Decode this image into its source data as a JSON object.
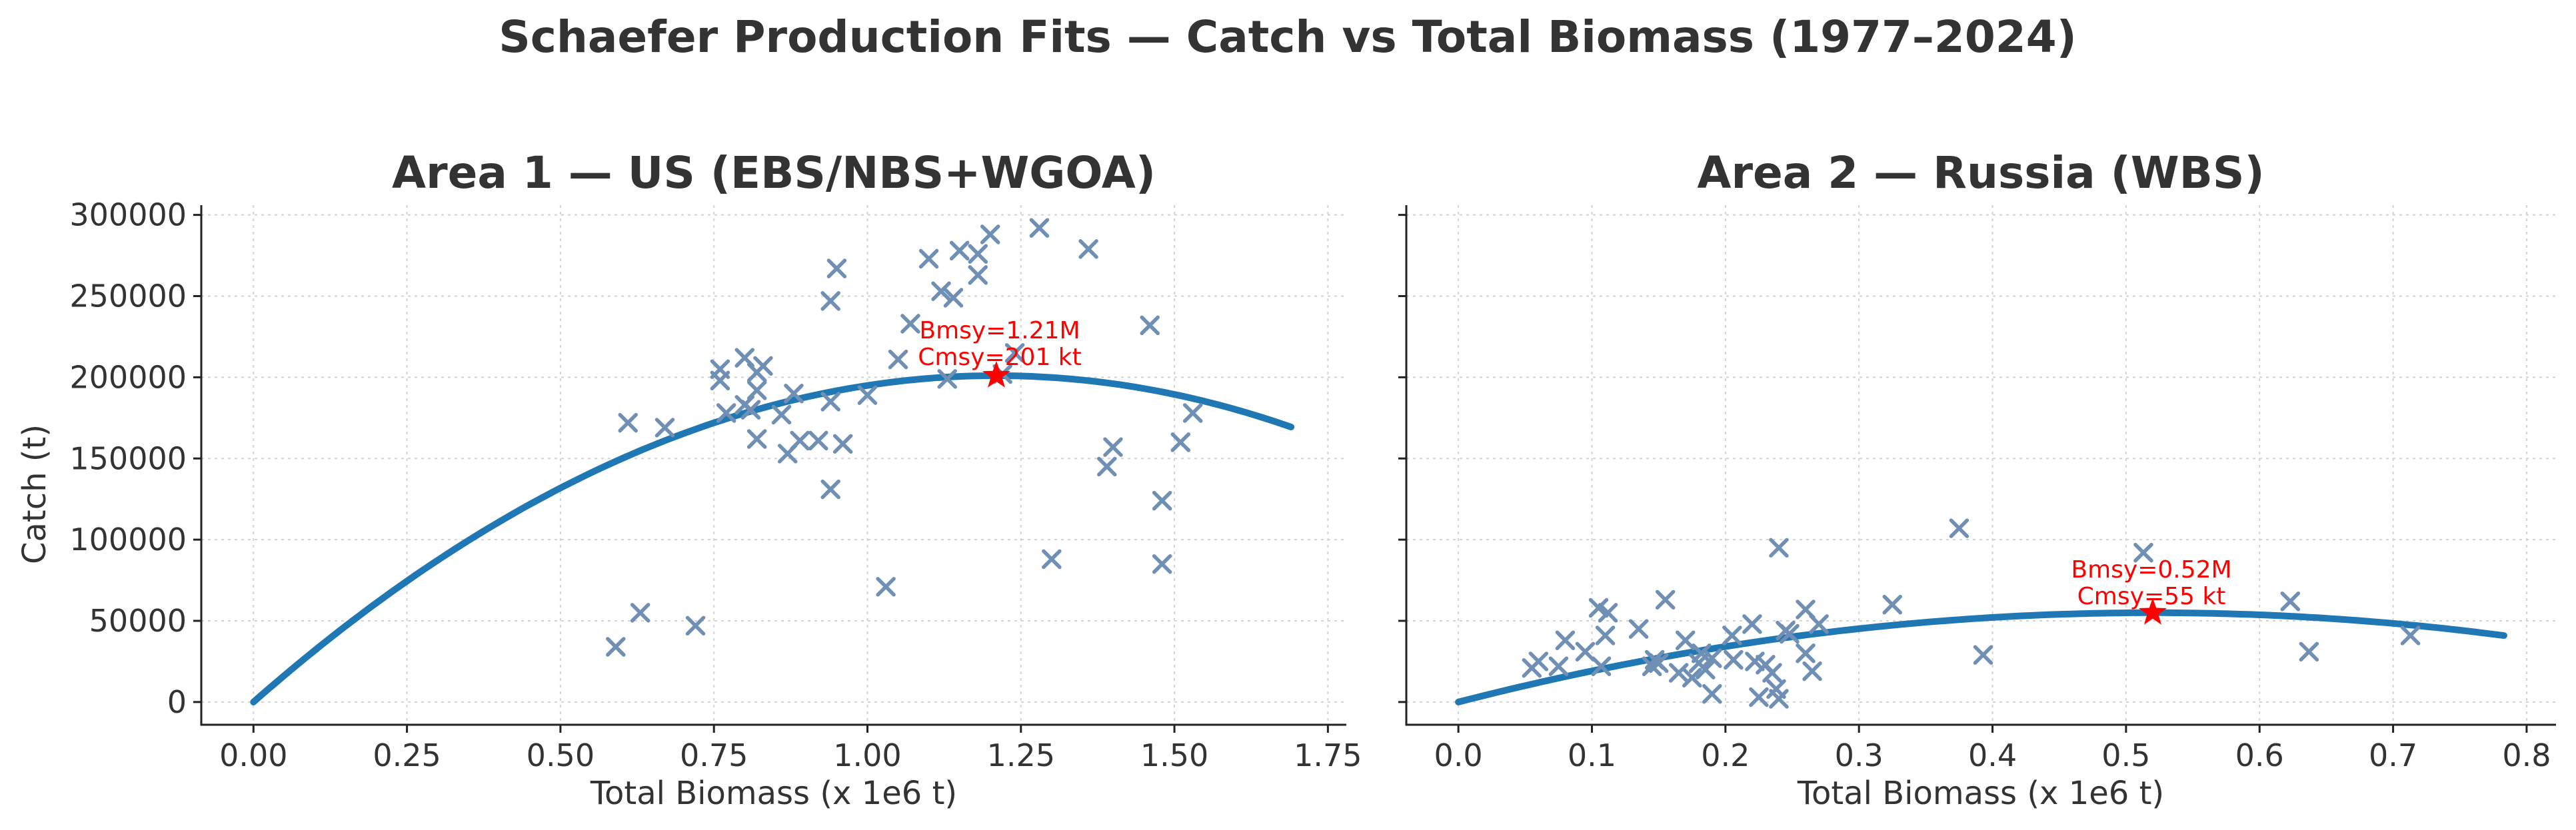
{
  "figure": {
    "suptitle": "Schaefer Production Fits — Catch vs Total Biomass (1977–2024)",
    "colors": {
      "fit": "#1f77b4",
      "observations": "#6f8fb4",
      "msy": "#ff0000",
      "text": "#333333"
    }
  },
  "chart_data": [
    {
      "type": "scatter",
      "title": "Area 1 — US (EBS/NBS+WGOA)",
      "xlabel": "Total Biomass (x 1e6 t)",
      "ylabel": "Catch (t)",
      "xlim": [
        -0.085,
        1.78
      ],
      "ylim": [
        -14000,
        306000
      ],
      "xticks": [
        0.0,
        0.25,
        0.5,
        0.75,
        1.0,
        1.25,
        1.5,
        1.75
      ],
      "xtick_labels": [
        "0.00",
        "0.25",
        "0.50",
        "0.75",
        "1.00",
        "1.25",
        "1.50",
        "1.75"
      ],
      "yticks": [
        0,
        50000,
        100000,
        150000,
        200000,
        250000,
        300000
      ],
      "ytick_labels": [
        "0",
        "50000",
        "100000",
        "150000",
        "200000",
        "250000",
        "300000"
      ],
      "grid": true,
      "observations": {
        "marker": "x",
        "points": [
          [
            0.59,
            34000
          ],
          [
            0.63,
            55000
          ],
          [
            0.61,
            172000
          ],
          [
            0.67,
            169000
          ],
          [
            0.72,
            47000
          ],
          [
            0.76,
            205000
          ],
          [
            0.76,
            198000
          ],
          [
            0.77,
            178000
          ],
          [
            0.8,
            212000
          ],
          [
            0.8,
            183000
          ],
          [
            0.82,
            203000
          ],
          [
            0.82,
            192000
          ],
          [
            0.83,
            207000
          ],
          [
            0.81,
            180000
          ],
          [
            0.82,
            162000
          ],
          [
            0.86,
            177000
          ],
          [
            0.87,
            153000
          ],
          [
            0.88,
            190000
          ],
          [
            0.89,
            161000
          ],
          [
            0.92,
            161000
          ],
          [
            0.94,
            185000
          ],
          [
            0.94,
            247000
          ],
          [
            0.95,
            267000
          ],
          [
            0.94,
            131000
          ],
          [
            0.96,
            159000
          ],
          [
            1.0,
            189000
          ],
          [
            1.03,
            71000
          ],
          [
            1.05,
            211000
          ],
          [
            1.07,
            233000
          ],
          [
            1.1,
            273000
          ],
          [
            1.12,
            253000
          ],
          [
            1.14,
            249000
          ],
          [
            1.15,
            278000
          ],
          [
            1.13,
            199000
          ],
          [
            1.18,
            276000
          ],
          [
            1.18,
            263000
          ],
          [
            1.2,
            288000
          ],
          [
            1.22,
            202000
          ],
          [
            1.24,
            215000
          ],
          [
            1.28,
            292000
          ],
          [
            1.3,
            88000
          ],
          [
            1.36,
            279000
          ],
          [
            1.39,
            145000
          ],
          [
            1.4,
            157000
          ],
          [
            1.46,
            232000
          ],
          [
            1.48,
            124000
          ],
          [
            1.48,
            85000
          ],
          [
            1.51,
            160000
          ],
          [
            1.53,
            178000
          ]
        ]
      },
      "fit": {
        "model": "Schaefer",
        "bmsy": 1.21,
        "cmsy": 201000,
        "x_range": [
          0.0,
          1.69
        ]
      },
      "msy_point": {
        "x": 1.21,
        "y": 201000,
        "marker": "star"
      },
      "annotation": [
        "Bmsy=1.21M",
        "Cmsy=201 kt"
      ]
    },
    {
      "type": "scatter",
      "title": "Area 2 — Russia (WBS)",
      "xlabel": "Total Biomass (x 1e6 t)",
      "ylabel": "",
      "xlim": [
        -0.039,
        0.822
      ],
      "ylim": [
        -14000,
        306000
      ],
      "xticks": [
        0.0,
        0.1,
        0.2,
        0.3,
        0.4,
        0.5,
        0.6,
        0.7,
        0.8
      ],
      "xtick_labels": [
        "0.0",
        "0.1",
        "0.2",
        "0.3",
        "0.4",
        "0.5",
        "0.6",
        "0.7",
        "0.8"
      ],
      "yticks": [
        0,
        50000,
        100000,
        150000,
        200000,
        250000,
        300000
      ],
      "ytick_labels": [],
      "sharey": true,
      "grid": true,
      "observations": {
        "marker": "x",
        "points": [
          [
            0.055,
            21000
          ],
          [
            0.06,
            25000
          ],
          [
            0.075,
            22000
          ],
          [
            0.08,
            38000
          ],
          [
            0.095,
            31000
          ],
          [
            0.105,
            58000
          ],
          [
            0.107,
            22000
          ],
          [
            0.11,
            41000
          ],
          [
            0.112,
            55000
          ],
          [
            0.135,
            45000
          ],
          [
            0.145,
            22000
          ],
          [
            0.147,
            26000
          ],
          [
            0.15,
            24000
          ],
          [
            0.155,
            63000
          ],
          [
            0.165,
            18000
          ],
          [
            0.17,
            38000
          ],
          [
            0.175,
            15000
          ],
          [
            0.18,
            24000
          ],
          [
            0.182,
            30000
          ],
          [
            0.185,
            20000
          ],
          [
            0.19,
            27000
          ],
          [
            0.19,
            5000
          ],
          [
            0.205,
            41000
          ],
          [
            0.206,
            26000
          ],
          [
            0.22,
            48000
          ],
          [
            0.222,
            25000
          ],
          [
            0.225,
            3000
          ],
          [
            0.23,
            23000
          ],
          [
            0.235,
            18000
          ],
          [
            0.238,
            8000
          ],
          [
            0.24,
            2000
          ],
          [
            0.24,
            95000
          ],
          [
            0.245,
            44000
          ],
          [
            0.248,
            42000
          ],
          [
            0.26,
            57000
          ],
          [
            0.26,
            30000
          ],
          [
            0.265,
            19000
          ],
          [
            0.27,
            48000
          ],
          [
            0.325,
            60000
          ],
          [
            0.375,
            107000
          ],
          [
            0.393,
            29000
          ],
          [
            0.513,
            92000
          ],
          [
            0.623,
            62000
          ],
          [
            0.637,
            31000
          ],
          [
            0.713,
            41000
          ]
        ]
      },
      "fit": {
        "model": "Schaefer",
        "bmsy": 0.52,
        "cmsy": 55000,
        "x_range": [
          0.0,
          0.783
        ]
      },
      "msy_point": {
        "x": 0.52,
        "y": 55000,
        "marker": "star"
      },
      "annotation": [
        "Bmsy=0.52M",
        "Cmsy=55 kt"
      ]
    }
  ]
}
